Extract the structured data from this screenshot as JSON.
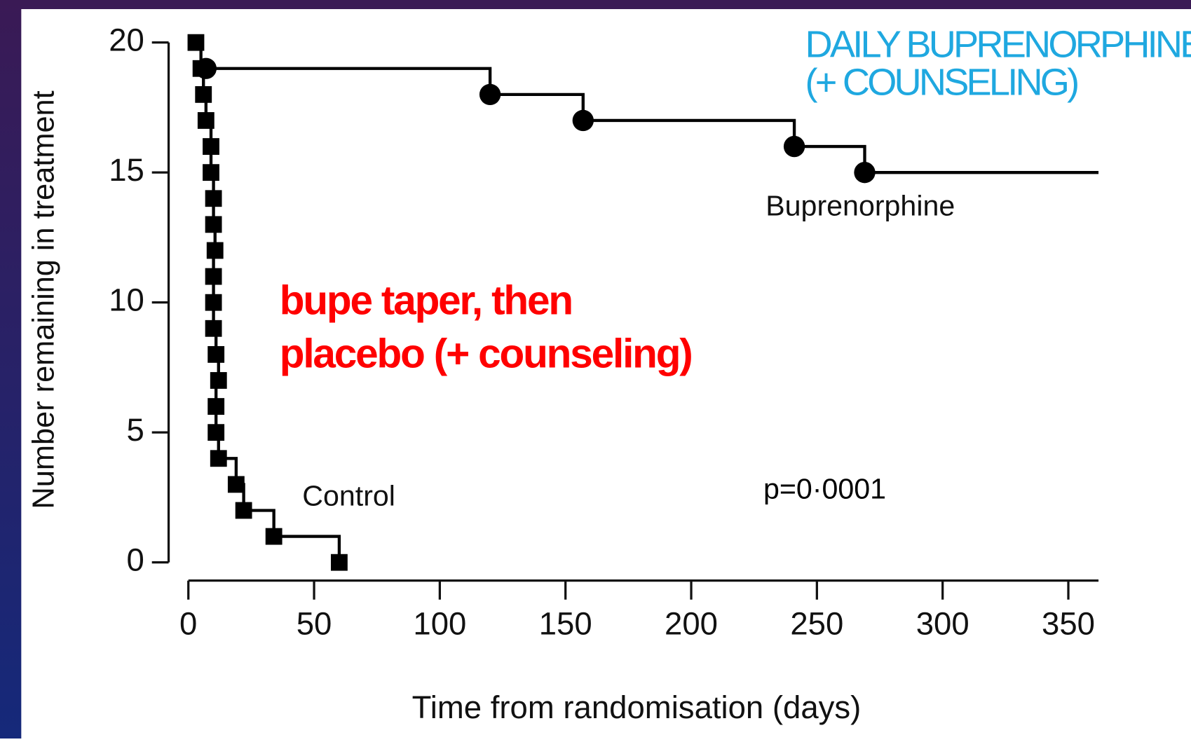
{
  "chart_data": {
    "type": "step",
    "xlabel": "Time from randomisation (days)",
    "ylabel": "Number remaining in treatment",
    "xlim": [
      0,
      362
    ],
    "ylim": [
      0,
      20
    ],
    "xticks": [
      0,
      50,
      100,
      150,
      200,
      250,
      300,
      350
    ],
    "yticks": [
      0,
      5,
      10,
      15,
      20
    ],
    "series": [
      {
        "name": "Buprenorphine",
        "color": "#000000",
        "marker": "circle",
        "x": [
          7,
          120,
          157,
          241,
          269
        ],
        "values": [
          19,
          18,
          17,
          16,
          15
        ]
      },
      {
        "name": "Control",
        "color": "#000000",
        "marker": "square",
        "x": [
          3,
          5,
          6,
          7,
          9,
          9,
          10,
          10,
          10.6,
          10,
          10,
          10,
          11,
          12,
          11,
          11,
          12,
          19,
          22,
          34,
          60
        ],
        "values": [
          20,
          19,
          18,
          17,
          16,
          15,
          14,
          13,
          12,
          11,
          10,
          9,
          8,
          7,
          6,
          5,
          4,
          3,
          2,
          1,
          0
        ]
      }
    ],
    "annotations": [
      {
        "text": "p=0·0001",
        "color": "#000000"
      },
      {
        "text": "DAILY BUPRENORPHINE",
        "color": "#1fa8e0"
      },
      {
        "text": "(+ COUNSELING)",
        "color": "#1fa8e0"
      },
      {
        "text": "bupe taper, then",
        "color": "#ff0000"
      },
      {
        "text": "placebo (+ counseling)",
        "color": "#ff0000"
      }
    ]
  }
}
